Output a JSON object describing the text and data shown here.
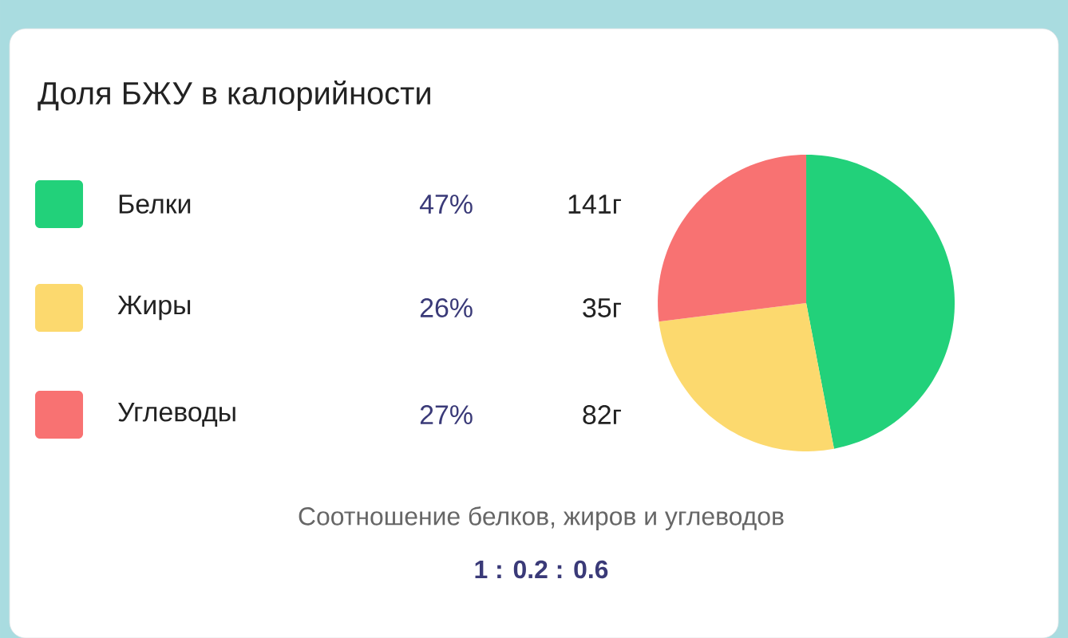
{
  "chart_data": {
    "type": "pie",
    "title": "Доля БЖУ в калорийности",
    "categories": [
      "Белки",
      "Жиры",
      "Углеводы"
    ],
    "values": [
      47,
      26,
      27
    ],
    "value_labels": [
      "47%",
      "26%",
      "27%"
    ],
    "colors": [
      "#22d17a",
      "#fcd96e",
      "#f87272"
    ],
    "legend": "left",
    "annotations": [
      "141г",
      "35г",
      "82г",
      "Соотношение белков, жиров и углеводов",
      "1 : 0.2 : 0.6"
    ]
  }
}
